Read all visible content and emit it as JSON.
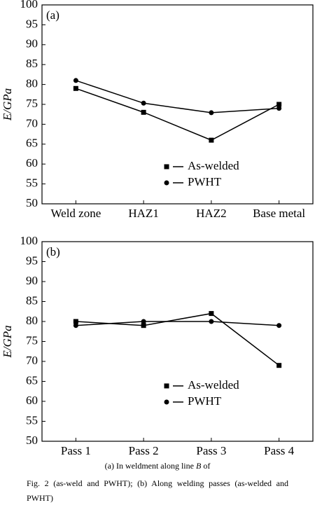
{
  "chart_data": [
    {
      "type": "line",
      "panel_label": "(a)",
      "y_label": "E/GPa",
      "categories": [
        "Weld zone",
        "HAZ1",
        "HAZ2",
        "Base metal"
      ],
      "series": [
        {
          "name": "As-welded",
          "color": "#000000",
          "marker": "square",
          "values": [
            79,
            73,
            66,
            75
          ]
        },
        {
          "name": "PWHT",
          "color": "#000000",
          "marker": "circle",
          "values": [
            81,
            75.3,
            72.9,
            74
          ]
        }
      ],
      "ylim": [
        50,
        100
      ],
      "yticks": [
        50,
        55,
        60,
        65,
        70,
        75,
        80,
        85,
        90,
        95,
        100
      ]
    },
    {
      "type": "line",
      "panel_label": "(b)",
      "y_label": "E/GPa",
      "categories": [
        "Pass 1",
        "Pass 2",
        "Pass 3",
        "Pass 4"
      ],
      "series": [
        {
          "name": "As-welded",
          "color": "#000000",
          "marker": "square",
          "values": [
            80,
            79,
            82,
            69
          ]
        },
        {
          "name": "PWHT",
          "color": "#000000",
          "marker": "circle",
          "values": [
            79,
            80,
            80,
            79
          ]
        }
      ],
      "ylim": [
        50,
        100
      ],
      "yticks": [
        50,
        55,
        60,
        65,
        70,
        75,
        80,
        85,
        90,
        95,
        100
      ]
    }
  ],
  "caption": {
    "line_a_start": "(a) In weldment along line ",
    "line_a_var": "B",
    "line_a_end": " of",
    "line_b": "Fig. 2 (as-weld and PWHT); (b) Along welding passes (as-welded and PWHT)"
  }
}
